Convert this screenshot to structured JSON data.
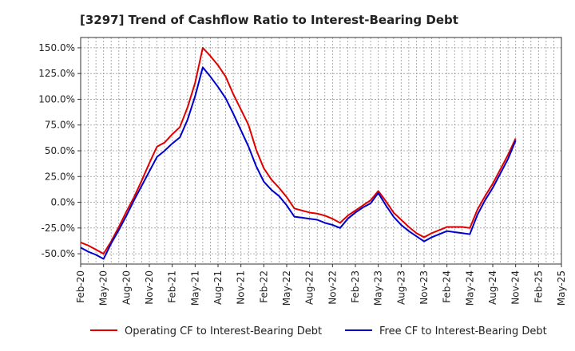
{
  "chart_data": {
    "type": "line",
    "title": "[3297]  Trend of Cashflow Ratio to Interest-Bearing Debt",
    "xlabel": "",
    "ylabel": "",
    "ylim": [
      -60,
      160
    ],
    "yticks": [
      -50,
      -25,
      0,
      25,
      50,
      75,
      100,
      125,
      150
    ],
    "ytick_labels": [
      "-50.0%",
      "-25.0%",
      "0.0%",
      "25.0%",
      "50.0%",
      "75.0%",
      "100.0%",
      "125.0%",
      "150.0%"
    ],
    "x_tick_labels": [
      "Feb-20",
      "May-20",
      "Aug-20",
      "Nov-20",
      "Feb-21",
      "May-21",
      "Aug-21",
      "Nov-21",
      "Feb-22",
      "May-22",
      "Aug-22",
      "Nov-22",
      "Feb-23",
      "May-23",
      "Aug-23",
      "Nov-23",
      "Feb-24",
      "May-24",
      "Aug-24",
      "Nov-24",
      "Feb-25",
      "May-25"
    ],
    "x": [
      "Feb-20",
      "Mar-20",
      "Apr-20",
      "May-20",
      "Jun-20",
      "Jul-20",
      "Aug-20",
      "Sep-20",
      "Oct-20",
      "Nov-20",
      "Dec-20",
      "Jan-21",
      "Feb-21",
      "Mar-21",
      "Apr-21",
      "May-21",
      "Jun-21",
      "Jul-21",
      "Aug-21",
      "Sep-21",
      "Oct-21",
      "Nov-21",
      "Dec-21",
      "Jan-22",
      "Feb-22",
      "Mar-22",
      "Apr-22",
      "May-22",
      "Jun-22",
      "Jul-22",
      "Aug-22",
      "Sep-22",
      "Oct-22",
      "Nov-22",
      "Dec-22",
      "Jan-23",
      "Feb-23",
      "Mar-23",
      "Apr-23",
      "May-23",
      "Jun-23",
      "Jul-23",
      "Aug-23",
      "Sep-23",
      "Oct-23",
      "Nov-23",
      "Dec-23",
      "Jan-24",
      "Feb-24",
      "Mar-24",
      "Apr-24",
      "May-24",
      "Jun-24",
      "Jul-24",
      "Aug-24",
      "Sep-24",
      "Oct-24",
      "Nov-24"
    ],
    "series": [
      {
        "name": "Operating CF to Interest-Bearing Debt",
        "color": "#e00000",
        "values": [
          -39,
          -42,
          -46,
          -50,
          -38,
          -24,
          -9,
          5,
          21,
          38,
          54,
          58,
          66,
          73,
          92,
          116,
          150,
          142,
          133,
          122,
          105,
          90,
          75,
          51,
          33,
          22,
          14,
          5,
          -6,
          -8,
          -10,
          -11,
          -13,
          -16,
          -20,
          -13,
          -8,
          -3,
          2,
          11,
          1,
          -10,
          -17,
          -24,
          -30,
          -34,
          -30,
          -27,
          -24,
          -24,
          -24,
          -25,
          -7,
          6,
          18,
          32,
          46,
          62
        ]
      },
      {
        "name": "Free CF to Interest-Bearing Debt",
        "color": "#0000cc",
        "values": [
          -44,
          -48,
          -51,
          -55,
          -40,
          -27,
          -13,
          2,
          16,
          30,
          44,
          50,
          57,
          63,
          80,
          103,
          131,
          122,
          112,
          101,
          86,
          70,
          54,
          35,
          20,
          12,
          6,
          -3,
          -14,
          -15,
          -16,
          -17,
          -20,
          -22,
          -25,
          -16,
          -10,
          -5,
          -1,
          9,
          -3,
          -14,
          -22,
          -28,
          -33,
          -38,
          -34,
          -31,
          -28,
          -29,
          -30,
          -31,
          -12,
          2,
          14,
          28,
          42,
          60
        ]
      }
    ],
    "grid": true,
    "legend_position": "bottom"
  }
}
